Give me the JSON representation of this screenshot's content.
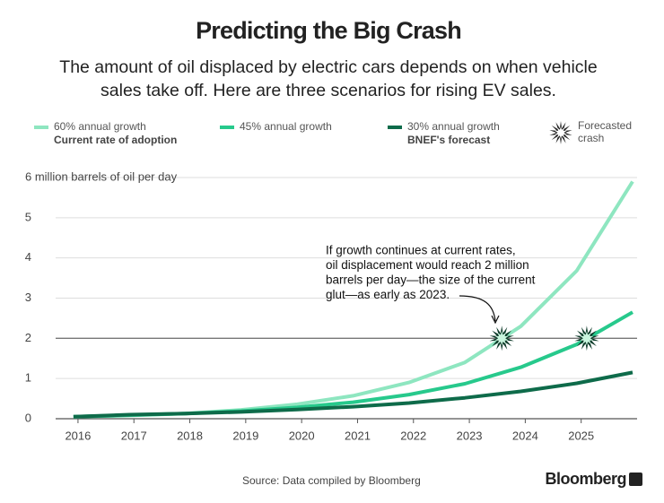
{
  "chart_data": {
    "type": "line",
    "title": "Predicting the Big Crash",
    "subtitle": [
      "The amount of oil displaced by electric cars depends on when vehicle",
      "sales take off. Here are three scenarios for rising EV sales."
    ],
    "x": [
      2015.92,
      2016.92,
      2017.92,
      2018.92,
      2019.92,
      2020.92,
      2021.92,
      2022.92,
      2023.92,
      2024.92,
      2025.92
    ],
    "series": [
      {
        "name": "60% annual growth",
        "note": "Current rate of adoption",
        "color": "#8ee6c0",
        "values": [
          0.05,
          0.08,
          0.13,
          0.22,
          0.36,
          0.57,
          0.9,
          1.4,
          2.3,
          3.68,
          5.9
        ]
      },
      {
        "name": "45% annual growth",
        "color": "#27c98c",
        "values": [
          0.05,
          0.09,
          0.13,
          0.19,
          0.28,
          0.41,
          0.6,
          0.87,
          1.28,
          1.85,
          2.65
        ]
      },
      {
        "name": "30% annual growth",
        "note": "BNEF's forecast",
        "color": "#0e6b4a",
        "values": [
          0.05,
          0.1,
          0.13,
          0.17,
          0.23,
          0.3,
          0.39,
          0.52,
          0.68,
          0.88,
          1.15
        ]
      }
    ],
    "crash_label": "Forecasted crash",
    "crashes": [
      {
        "x": 2023.58,
        "y": 2
      },
      {
        "x": 2025.1,
        "y": 2
      }
    ],
    "reference_line": 2,
    "annotation": [
      "If growth continues at current rates,",
      "oil displacement would reach 2 million",
      "barrels per day—the size of the current",
      "glut—as early as 2023."
    ],
    "xlim": [
      2015.6,
      2026
    ],
    "xticks": [
      2016,
      2017,
      2018,
      2019,
      2020,
      2021,
      2022,
      2023,
      2024,
      2025
    ],
    "ylim": [
      0,
      6
    ],
    "yticks": [
      0,
      1,
      2,
      3,
      4,
      5,
      {
        "value": 6,
        "label": "6 million barrels of oil per day"
      }
    ],
    "grid": true,
    "source": "Source: Data compiled by Bloomberg",
    "brand": "Bloomberg"
  }
}
